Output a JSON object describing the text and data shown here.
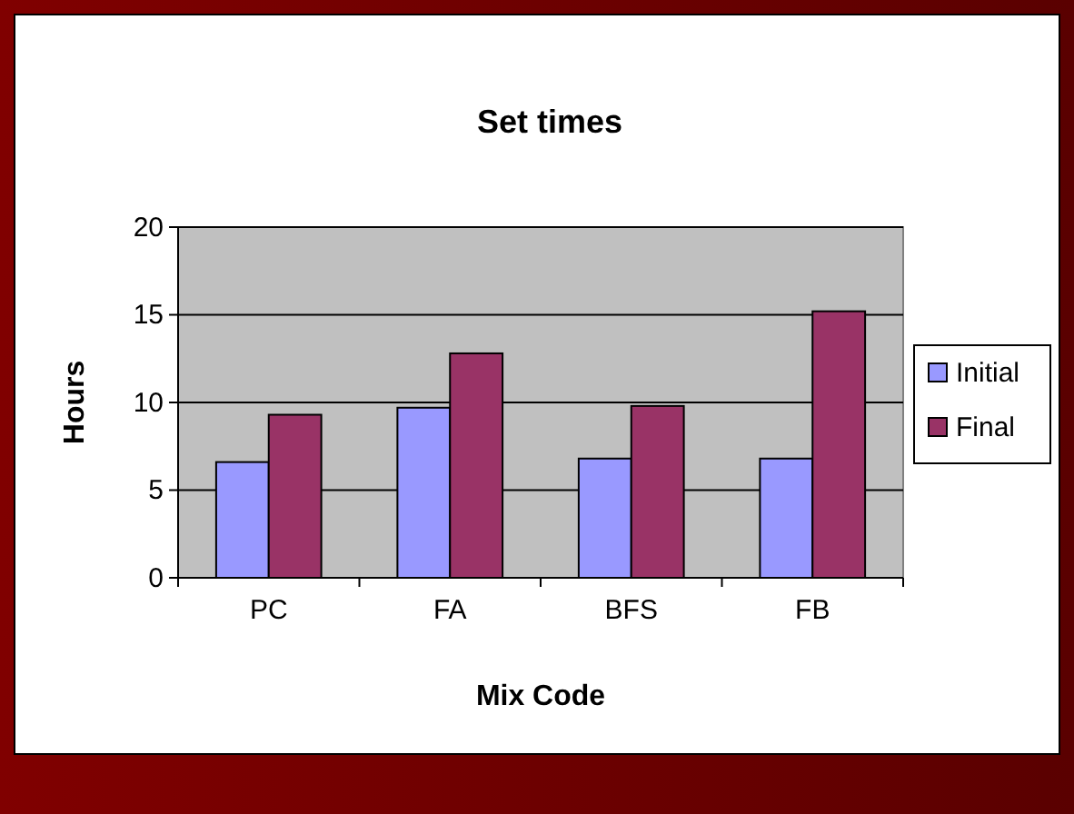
{
  "chart_data": {
    "type": "bar",
    "title": "Set times",
    "xlabel": "Mix Code",
    "ylabel": "Hours",
    "categories": [
      "PC",
      "FA",
      "BFS",
      "FB"
    ],
    "series": [
      {
        "name": "Initial",
        "color": "#9999ff",
        "values": [
          6.6,
          9.7,
          6.8,
          6.8
        ]
      },
      {
        "name": "Final",
        "color": "#993366",
        "values": [
          9.3,
          12.8,
          9.8,
          15.2
        ]
      }
    ],
    "ylim": [
      0,
      20
    ],
    "yticks": [
      0,
      5,
      10,
      15,
      20
    ],
    "grid": "y",
    "legend": "right"
  }
}
